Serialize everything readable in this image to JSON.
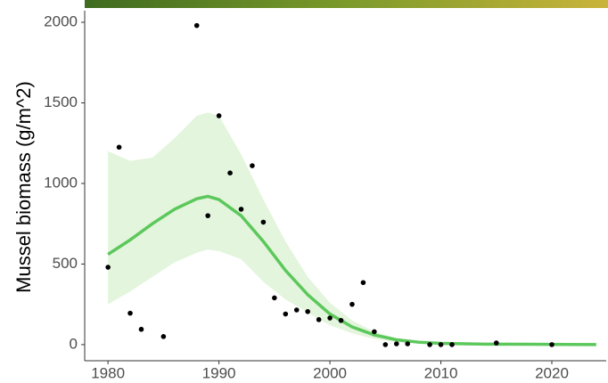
{
  "chart_data": {
    "type": "scatter",
    "y_label": "Mussel biomass (g/m^2)",
    "x": [
      1980,
      1981,
      1982,
      1983,
      1985,
      1988,
      1989,
      1990,
      1991,
      1992,
      1993,
      1994,
      1995,
      1996,
      1997,
      1998,
      1999,
      2000,
      2001,
      2002,
      2003,
      2004,
      2005,
      2006,
      2007,
      2009,
      2010,
      2011,
      2015,
      2020
    ],
    "values": [
      480,
      1225,
      195,
      95,
      50,
      1980,
      800,
      1420,
      1065,
      840,
      1110,
      760,
      290,
      190,
      215,
      205,
      155,
      165,
      150,
      250,
      385,
      80,
      0,
      5,
      5,
      0,
      0,
      0,
      10,
      0
    ],
    "color": "#000000",
    "fit": {
      "x": [
        1980,
        1982,
        1984,
        1986,
        1988,
        1989,
        1990,
        1992,
        1994,
        1996,
        1998,
        2000,
        2002,
        2004,
        2006,
        2008,
        2010,
        2014,
        2018,
        2024
      ],
      "values": [
        560,
        650,
        750,
        840,
        905,
        920,
        900,
        800,
        640,
        460,
        310,
        190,
        110,
        60,
        30,
        15,
        8,
        3,
        2,
        0
      ],
      "lower": [
        250,
        330,
        420,
        510,
        570,
        590,
        580,
        530,
        390,
        280,
        200,
        120,
        70,
        35,
        15,
        8,
        4,
        1,
        0,
        -2
      ],
      "upper": [
        1200,
        1140,
        1160,
        1280,
        1420,
        1440,
        1420,
        1180,
        900,
        640,
        420,
        260,
        150,
        80,
        40,
        20,
        12,
        5,
        3,
        2
      ],
      "color": "#5cc85c",
      "band_color": "#e3f5dc"
    },
    "xlim": [
      1977.9,
      2024.9
    ],
    "ylim": [
      -100,
      2072
    ],
    "xticks": [
      1980,
      1990,
      2000,
      2010,
      2020
    ],
    "yticks": [
      0,
      500,
      1000,
      1500,
      2000
    ]
  }
}
